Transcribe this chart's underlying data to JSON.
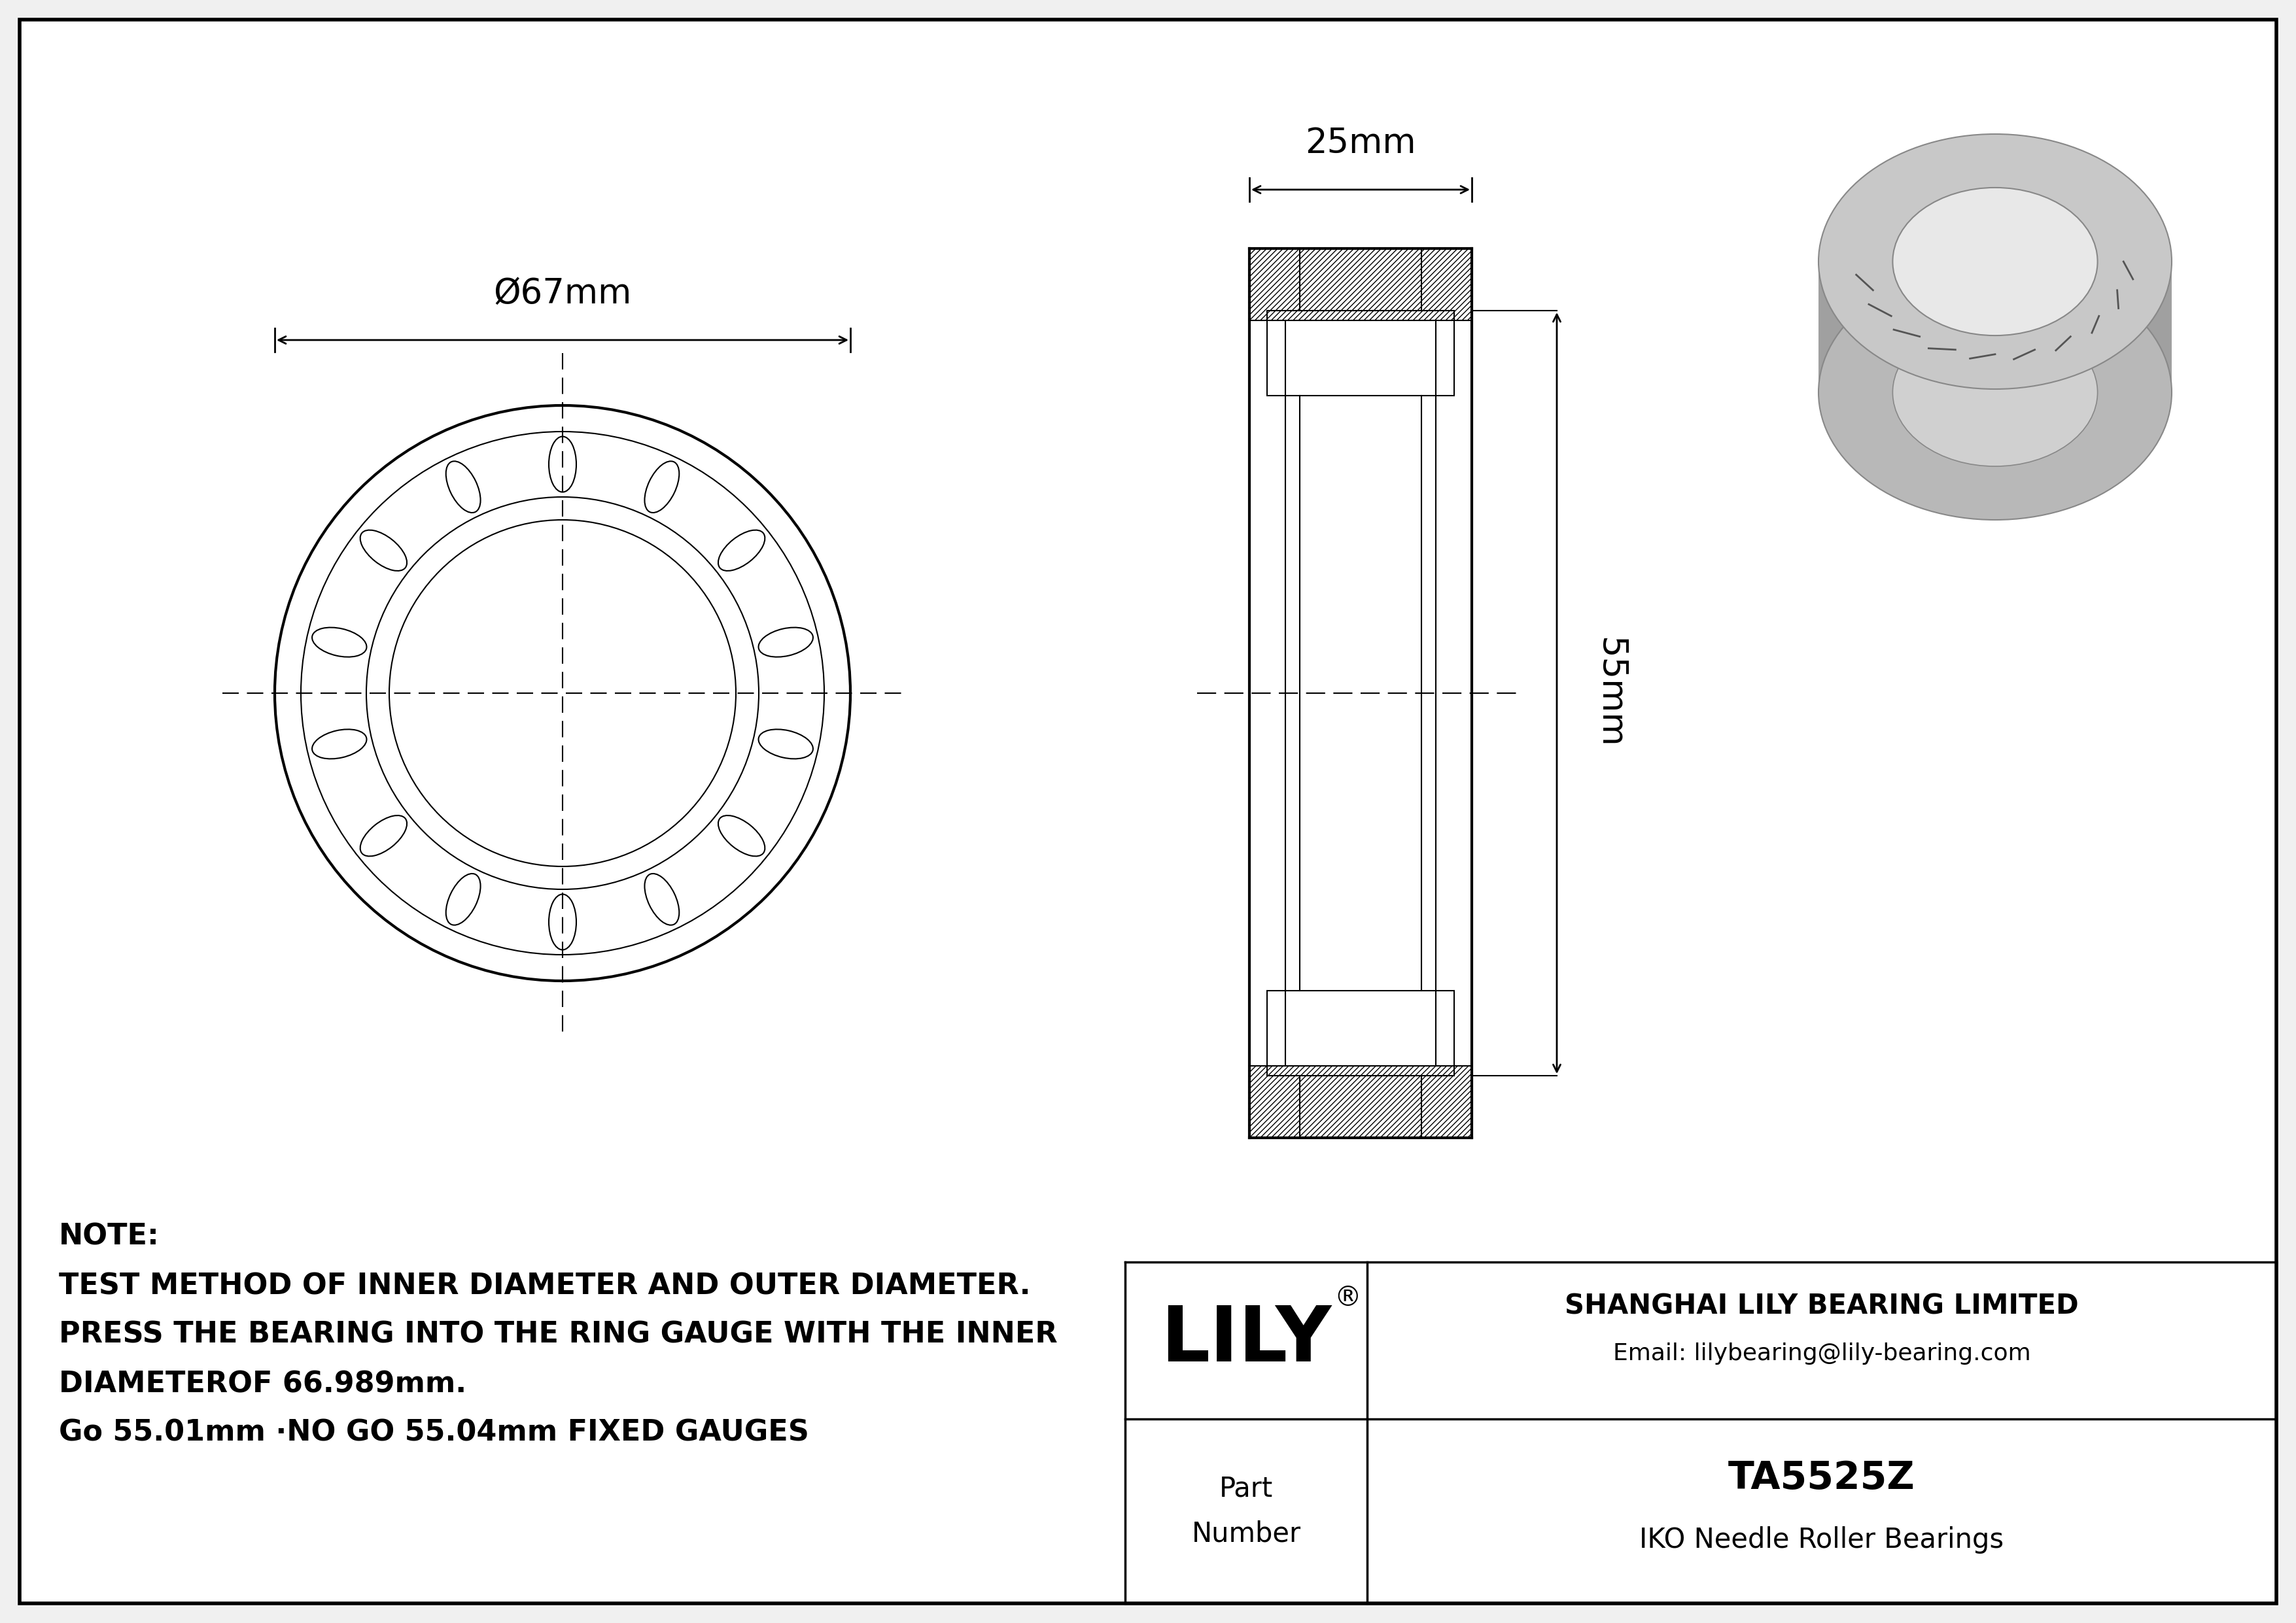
{
  "bg_color": "#f0f0f0",
  "drawing_bg": "#ffffff",
  "note_lines": [
    "NOTE:",
    "TEST METHOD OF INNER DIAMETER AND OUTER DIAMETER.",
    "PRESS THE BEARING INTO THE RING GAUGE WITH THE INNER",
    "DIAMETEROF 66.989mm.",
    "Go 55.01mm ·NO GO 55.04mm FIXED GAUGES"
  ],
  "company_name": "SHANGHAI LILY BEARING LIMITED",
  "company_email": "Email: lilybearing@lily-bearing.com",
  "brand": "LILY",
  "reg_symbol": "®",
  "part_label": "Part\nNumber",
  "part_number": "TA5525Z",
  "part_type": "IKO Needle Roller Bearings",
  "dim_od": "Ø67mm",
  "dim_width": "25mm",
  "dim_length": "55mm",
  "num_rollers": 14
}
